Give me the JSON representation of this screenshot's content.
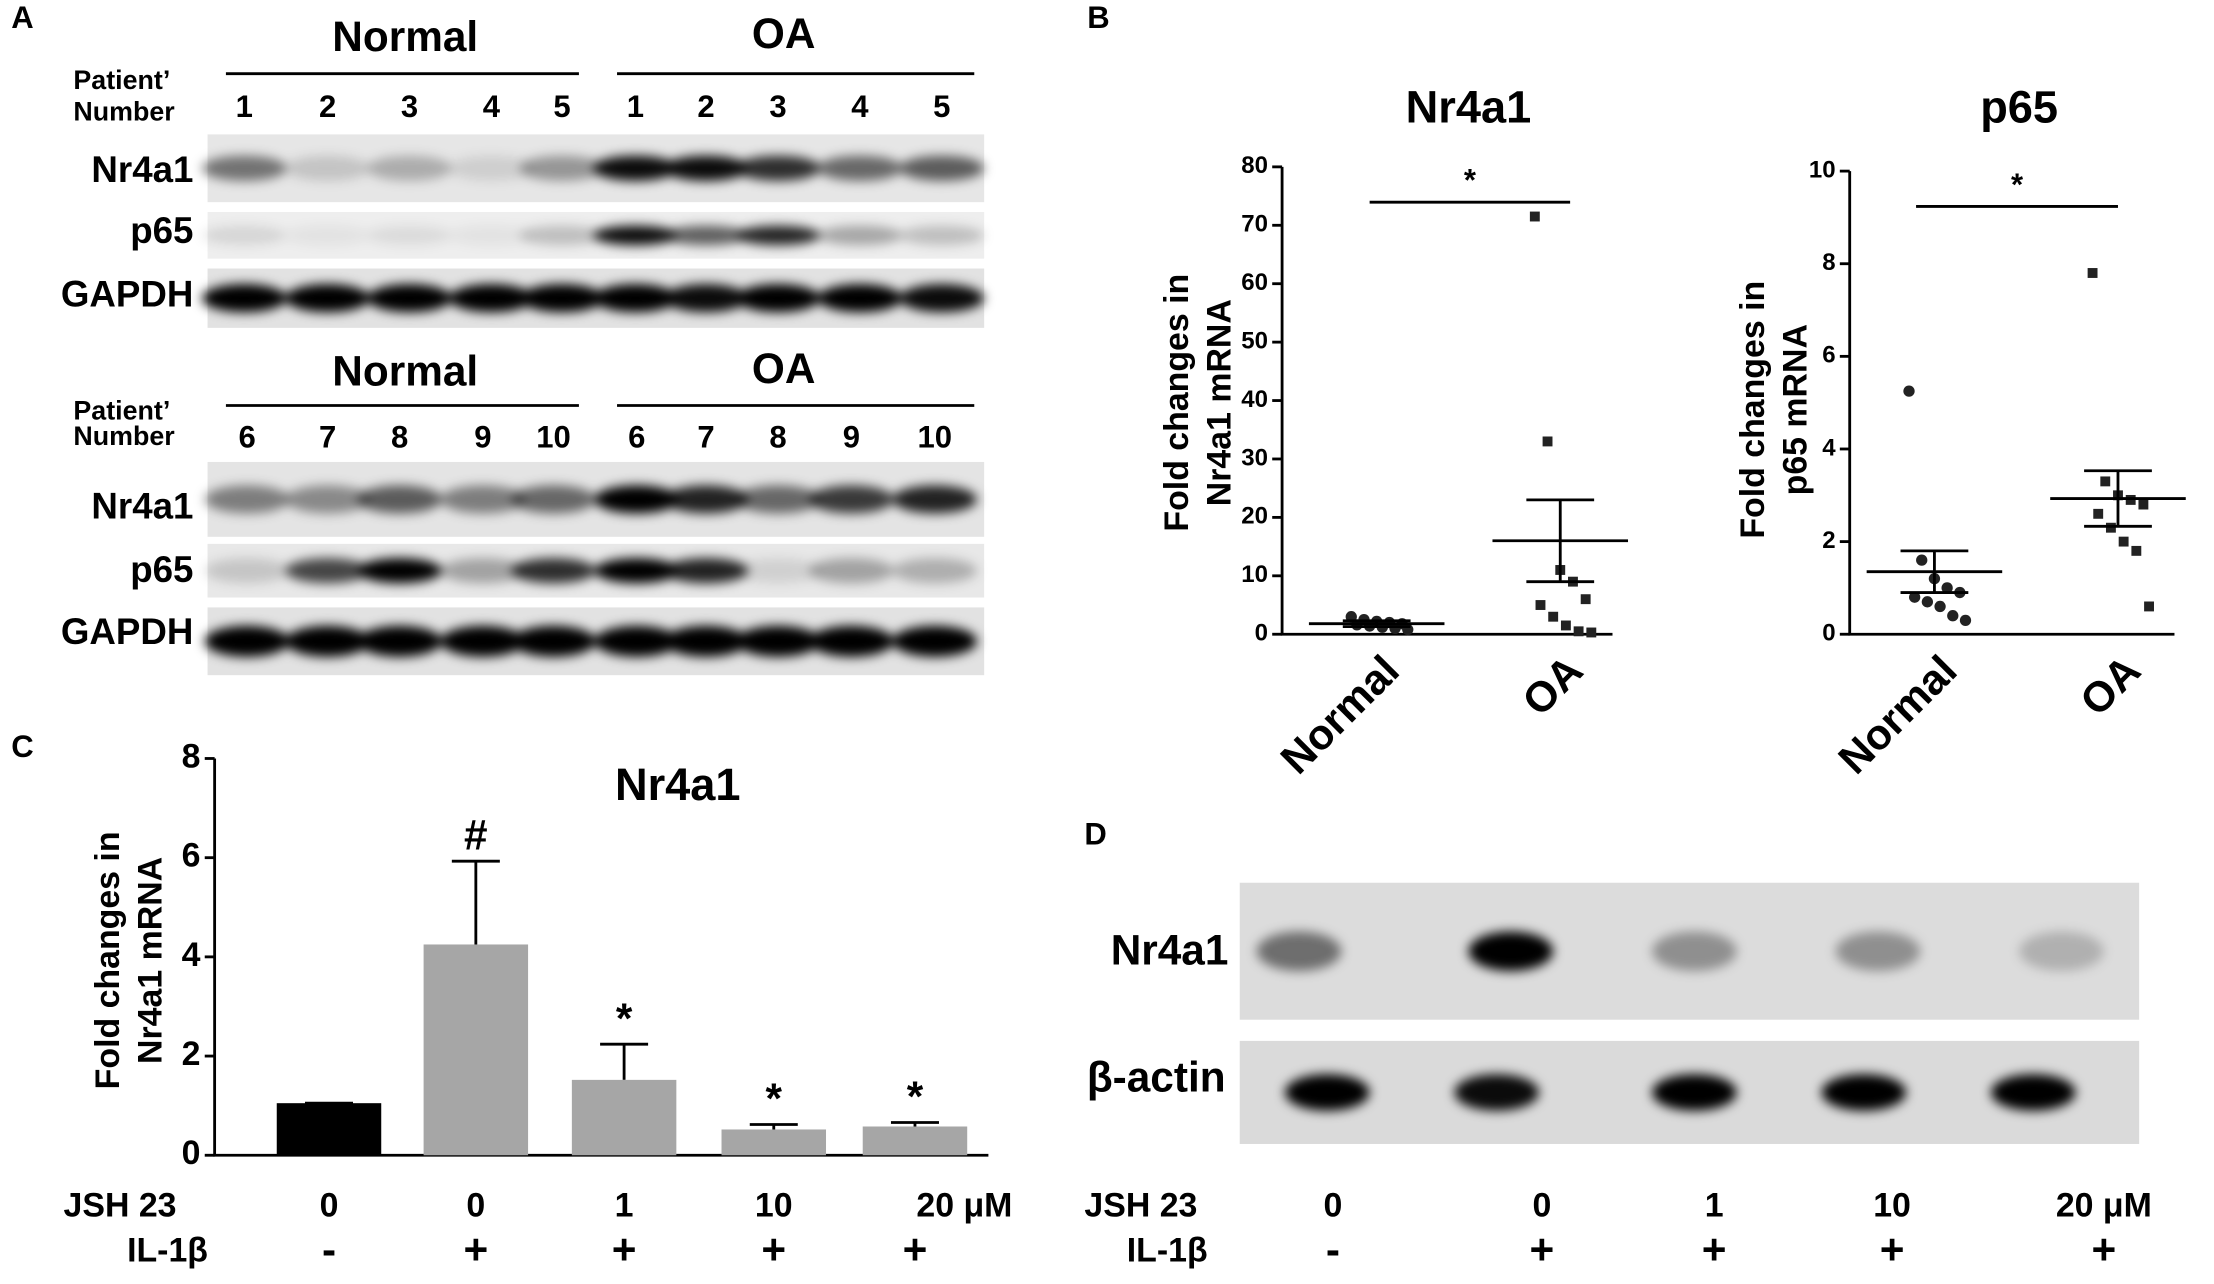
{
  "panel_labels": [
    "A",
    "B",
    "C",
    "D"
  ],
  "blot_a": {
    "blocks": [
      {
        "groups": [
          "Normal",
          "OA"
        ],
        "patient_label": [
          "Patient’",
          "Number"
        ],
        "lanes": [
          1,
          2,
          3,
          4,
          5,
          1,
          2,
          3,
          4,
          5
        ],
        "rows": [
          "Nr4a1",
          "p65",
          "GAPDH"
        ]
      },
      {
        "groups": [
          "Normal",
          "OA"
        ],
        "patient_label": [
          "Patient’",
          "Number"
        ],
        "lanes": [
          6,
          7,
          8,
          9,
          10,
          6,
          7,
          8,
          9,
          10
        ],
        "rows": [
          "Nr4a1",
          "p65",
          "GAPDH"
        ]
      }
    ]
  },
  "blot_d": {
    "rows": [
      "Nr4a1",
      "β-actin"
    ],
    "treatments": [
      {
        "name": "JSH 23",
        "values": [
          "0",
          "0",
          "1",
          "10",
          "20 μM"
        ]
      },
      {
        "name": "IL-1β",
        "values": [
          "-",
          "+",
          "+",
          "+",
          "+"
        ]
      }
    ]
  },
  "chart_data": [
    {
      "type": "dot",
      "title": "Nr4a1",
      "ylabel": [
        "Fold changes in",
        "Nr4a1 mRNA"
      ],
      "categories": [
        "Normal",
        "OA"
      ],
      "points": [
        [
          3,
          2.5,
          2.2,
          2,
          1.8,
          1.6,
          1.4,
          1.2,
          1,
          0.8
        ],
        [
          71.5,
          33,
          11,
          9,
          6,
          5,
          3,
          1.5,
          0.5,
          0.3
        ]
      ],
      "means": [
        1.8,
        16
      ],
      "errors": [
        0.5,
        7
      ],
      "markers": [
        "circle",
        "square"
      ],
      "significance": "*",
      "ylim": [
        0,
        80
      ],
      "yticks": [
        0,
        10,
        20,
        30,
        40,
        50,
        60,
        70,
        80
      ]
    },
    {
      "type": "dot",
      "title": "p65",
      "ylabel": [
        "Fold changes in",
        "p65 mRNA"
      ],
      "categories": [
        "Normal",
        "OA"
      ],
      "points": [
        [
          5.25,
          1.6,
          1.2,
          1,
          0.9,
          0.8,
          0.7,
          0.6,
          0.4,
          0.3
        ],
        [
          7.8,
          3.3,
          3,
          2.9,
          2.8,
          2.6,
          2.3,
          2,
          1.8,
          0.6
        ]
      ],
      "means": [
        1.35,
        2.93
      ],
      "errors": [
        0.45,
        0.6
      ],
      "markers": [
        "circle",
        "square"
      ],
      "significance": "*",
      "ylim": [
        0,
        10
      ],
      "yticks": [
        0,
        2,
        4,
        6,
        8,
        10
      ]
    },
    {
      "type": "bar",
      "title": "Nr4a1",
      "ylabel": [
        "Fold changes in",
        "Nr4a1 mRNA"
      ],
      "category_label": "JSH 23",
      "categories": [
        "0",
        "0",
        "1",
        "10",
        "20 μM"
      ],
      "category_rows": [
        {
          "name": "IL-1β",
          "values": [
            "-",
            "+",
            "+",
            "+",
            "+"
          ]
        }
      ],
      "values": [
        1.05,
        4.25,
        1.52,
        0.52,
        0.58
      ],
      "errors": [
        0,
        1.68,
        0.72,
        0.1,
        0.08
      ],
      "colors": [
        "#000000",
        "#a6a6a6",
        "#a6a6a6",
        "#a6a6a6",
        "#a6a6a6"
      ],
      "annotations": [
        {
          "index": 1,
          "text": "#"
        },
        {
          "index": 2,
          "text": "*"
        },
        {
          "index": 3,
          "text": "*"
        },
        {
          "index": 4,
          "text": "*"
        }
      ],
      "ylim": [
        0,
        8
      ],
      "yticks": [
        0,
        2,
        4,
        6,
        8
      ]
    }
  ]
}
